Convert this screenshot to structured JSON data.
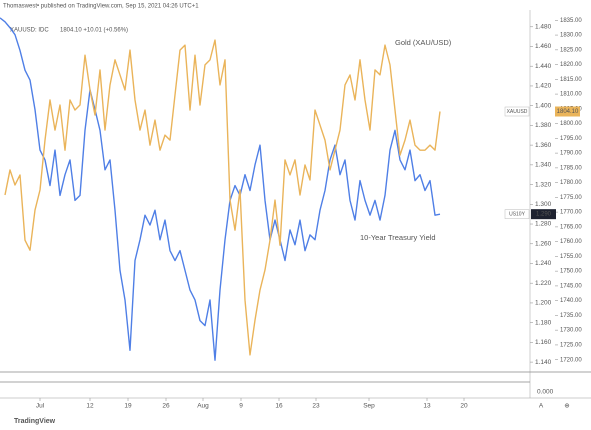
{
  "chart_data": {
    "type": "line",
    "header": "Thomaswest• published on TradingView.com, Sep 15, 2021 04:26 UTC+1",
    "symbol": "XAUUSD: IDC",
    "header_quote": "1804.10 +10.01 (+0.56%)",
    "annotations": [
      "Gold (XAU/USD)",
      "10-Year Treasury Yield"
    ],
    "lower_pane_label": "0.000",
    "footer": "TradingView",
    "axis_buttons": [
      "A",
      "⊕"
    ],
    "grid": false,
    "x": [
      0,
      1,
      2,
      3,
      4,
      5,
      6,
      7,
      8,
      9,
      10,
      11,
      12,
      13,
      14,
      15,
      16,
      17,
      18,
      19,
      20,
      21,
      22,
      23,
      24,
      25,
      26,
      27,
      28,
      29,
      30,
      31,
      32,
      33,
      34,
      35,
      36,
      37,
      38,
      39,
      40,
      41,
      42,
      43,
      44,
      45,
      46,
      47,
      48,
      49,
      50,
      51,
      52,
      53,
      54,
      55,
      56,
      57,
      58,
      59,
      60,
      61,
      62,
      63,
      64,
      65,
      66,
      67,
      68,
      69,
      70,
      71,
      72,
      73,
      74,
      75,
      76,
      77,
      78,
      79,
      80,
      81,
      82,
      83,
      84,
      85,
      86,
      87,
      88
    ],
    "xlim": [
      0,
      106
    ],
    "xticks": [
      {
        "value": 8,
        "label": "Jul"
      },
      {
        "value": 18,
        "label": "12"
      },
      {
        "value": 25.6,
        "label": "19"
      },
      {
        "value": 33.2,
        "label": "26"
      },
      {
        "value": 40.6,
        "label": "Aug"
      },
      {
        "value": 48.2,
        "label": "9"
      },
      {
        "value": 55.8,
        "label": "16"
      },
      {
        "value": 63.2,
        "label": "23"
      },
      {
        "value": 73.8,
        "label": "Sep"
      },
      {
        "value": 85.4,
        "label": "13"
      },
      {
        "value": 92.8,
        "label": "20"
      }
    ],
    "ylim": [
      1.132,
      1.497
    ],
    "yticks": [
      {
        "value": 1.48,
        "label": "1.480"
      },
      {
        "value": 1.46,
        "label": "1.460"
      },
      {
        "value": 1.44,
        "label": "1.440"
      },
      {
        "value": 1.42,
        "label": "1.420"
      },
      {
        "value": 1.4,
        "label": "1.400"
      },
      {
        "value": 1.38,
        "label": "1.380"
      },
      {
        "value": 1.36,
        "label": "1.360"
      },
      {
        "value": 1.34,
        "label": "1.340"
      },
      {
        "value": 1.32,
        "label": "1.320"
      },
      {
        "value": 1.3,
        "label": "1.300"
      },
      {
        "value": 1.28,
        "label": "1.280"
      },
      {
        "value": 1.26,
        "label": "1.260"
      },
      {
        "value": 1.24,
        "label": "1.240"
      },
      {
        "value": 1.22,
        "label": "1.220"
      },
      {
        "value": 1.2,
        "label": "1.200"
      },
      {
        "value": 1.18,
        "label": "1.180"
      },
      {
        "value": 1.16,
        "label": "1.160"
      },
      {
        "value": 1.14,
        "label": "1.140"
      }
    ],
    "y2lim": [
      1716.5,
      1838.5
    ],
    "y2ticks": [
      {
        "value": 1835,
        "label": "1835.00"
      },
      {
        "value": 1830,
        "label": "1830.00"
      },
      {
        "value": 1825,
        "label": "1825.00"
      },
      {
        "value": 1820,
        "label": "1820.00"
      },
      {
        "value": 1815,
        "label": "1815.00"
      },
      {
        "value": 1810,
        "label": "1810.00"
      },
      {
        "value": 1805,
        "label": "1805.00"
      },
      {
        "value": 1800,
        "label": "1800.00"
      },
      {
        "value": 1795,
        "label": "1795.00"
      },
      {
        "value": 1790,
        "label": "1790.00"
      },
      {
        "value": 1785,
        "label": "1785.00"
      },
      {
        "value": 1780,
        "label": "1780.00"
      },
      {
        "value": 1775,
        "label": "1775.00"
      },
      {
        "value": 1770,
        "label": "1770.00"
      },
      {
        "value": 1765,
        "label": "1765.00"
      },
      {
        "value": 1760,
        "label": "1760.00"
      },
      {
        "value": 1755,
        "label": "1755.00"
      },
      {
        "value": 1750,
        "label": "1750.00"
      },
      {
        "value": 1745,
        "label": "1745.00"
      },
      {
        "value": 1740,
        "label": "1740.00"
      },
      {
        "value": 1735,
        "label": "1735.00"
      },
      {
        "value": 1730,
        "label": "1730.00"
      },
      {
        "value": 1725,
        "label": "1725.00"
      },
      {
        "value": 1720,
        "label": "1720.00"
      }
    ],
    "series": [
      {
        "name": "US10Y",
        "color": "#4f7fe6",
        "last_label": "1.290",
        "values": [
          1.489,
          1.485,
          1.479,
          1.472,
          1.456,
          1.436,
          1.426,
          1.396,
          1.355,
          1.345,
          1.319,
          1.355,
          1.309,
          1.33,
          1.345,
          1.304,
          1.309,
          1.375,
          1.416,
          1.396,
          1.375,
          1.335,
          1.345,
          1.294,
          1.233,
          1.203,
          1.152,
          1.243,
          1.264,
          1.289,
          1.279,
          1.294,
          1.264,
          1.284,
          1.253,
          1.243,
          1.253,
          1.233,
          1.213,
          1.203,
          1.182,
          1.177,
          1.203,
          1.142,
          1.213,
          1.264,
          1.304,
          1.319,
          1.309,
          1.33,
          1.314,
          1.34,
          1.36,
          1.304,
          1.264,
          1.284,
          1.264,
          1.243,
          1.274,
          1.259,
          1.284,
          1.253,
          1.269,
          1.264,
          1.294,
          1.314,
          1.345,
          1.36,
          1.33,
          1.345,
          1.304,
          1.284,
          1.324,
          1.304,
          1.289,
          1.304,
          1.284,
          1.309,
          1.355,
          1.375,
          1.345,
          1.335,
          1.355,
          1.324,
          1.33,
          1.314,
          1.324,
          1.289,
          1.29
        ]
      },
      {
        "name": "XAUUSD",
        "color": "#eab45a",
        "axis": "y2",
        "last_label": "1804.10",
        "values": [
          null,
          1775.8,
          1784.3,
          1779.2,
          1782.6,
          1760.5,
          1757.1,
          1770.7,
          1777.5,
          1794.4,
          1808.0,
          1797.8,
          1806.3,
          1791.0,
          1808.0,
          1804.6,
          1806.3,
          1823.2,
          1811.4,
          1802.9,
          1818.2,
          1797.8,
          1813.1,
          1821.6,
          1816.5,
          1811.4,
          1824.9,
          1808.0,
          1797.8,
          1804.6,
          1792.7,
          1801.2,
          1791.0,
          1796.1,
          1794.4,
          1809.7,
          1824.9,
          1826.6,
          1804.6,
          1823.2,
          1806.3,
          1819.9,
          1821.6,
          1828.3,
          1813.1,
          1821.6,
          1774.1,
          1763.9,
          1777.5,
          1740.2,
          1721.6,
          1733.4,
          1743.6,
          1750.4,
          1760.5,
          1774.1,
          1758.8,
          1787.7,
          1782.6,
          1787.7,
          1775.8,
          1786.0,
          1780.9,
          1804.6,
          1799.5,
          1794.4,
          1784.3,
          1791.0,
          1797.8,
          1813.1,
          1816.5,
          1808.0,
          1821.6,
          1808.0,
          1797.8,
          1818.2,
          1816.5,
          1826.6,
          1819.9,
          1804.6,
          1789.3,
          1794.4,
          1801.2,
          1792.7,
          1791.0,
          1791.0,
          1792.7,
          1791.0,
          1804.1
        ]
      }
    ]
  }
}
